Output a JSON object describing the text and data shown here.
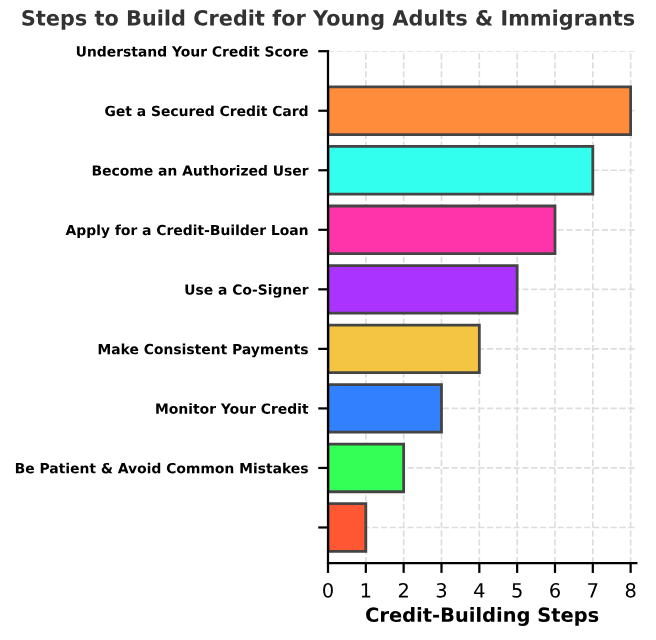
{
  "chart_data": {
    "type": "bar",
    "orientation": "horizontal",
    "title": "Steps to Build Credit for Young Adults & Immigrants",
    "xlabel": "Credit-Building Steps",
    "categories": [
      "Understand Your Credit Score",
      "Get a Secured Credit Card",
      "Become an Authorized User",
      "Apply for a Credit-Builder Loan",
      "Use a Co-Signer",
      "Make Consistent Payments",
      "Monitor Your Credit",
      "Be Patient & Avoid Common Mistakes",
      null
    ],
    "values": [
      null,
      8,
      7,
      6,
      5,
      4,
      3,
      2,
      1
    ],
    "colors": [
      "#888888",
      "#ff8c3a",
      "#33ffee",
      "#ff33aa",
      "#aa33ff",
      "#f4c542",
      "#3380ff",
      "#33ff57",
      "#ff5733"
    ],
    "xlim": [
      0,
      8.15
    ],
    "xticks": [
      0,
      1,
      2,
      3,
      4,
      5,
      6,
      7,
      8
    ],
    "grid": true
  }
}
